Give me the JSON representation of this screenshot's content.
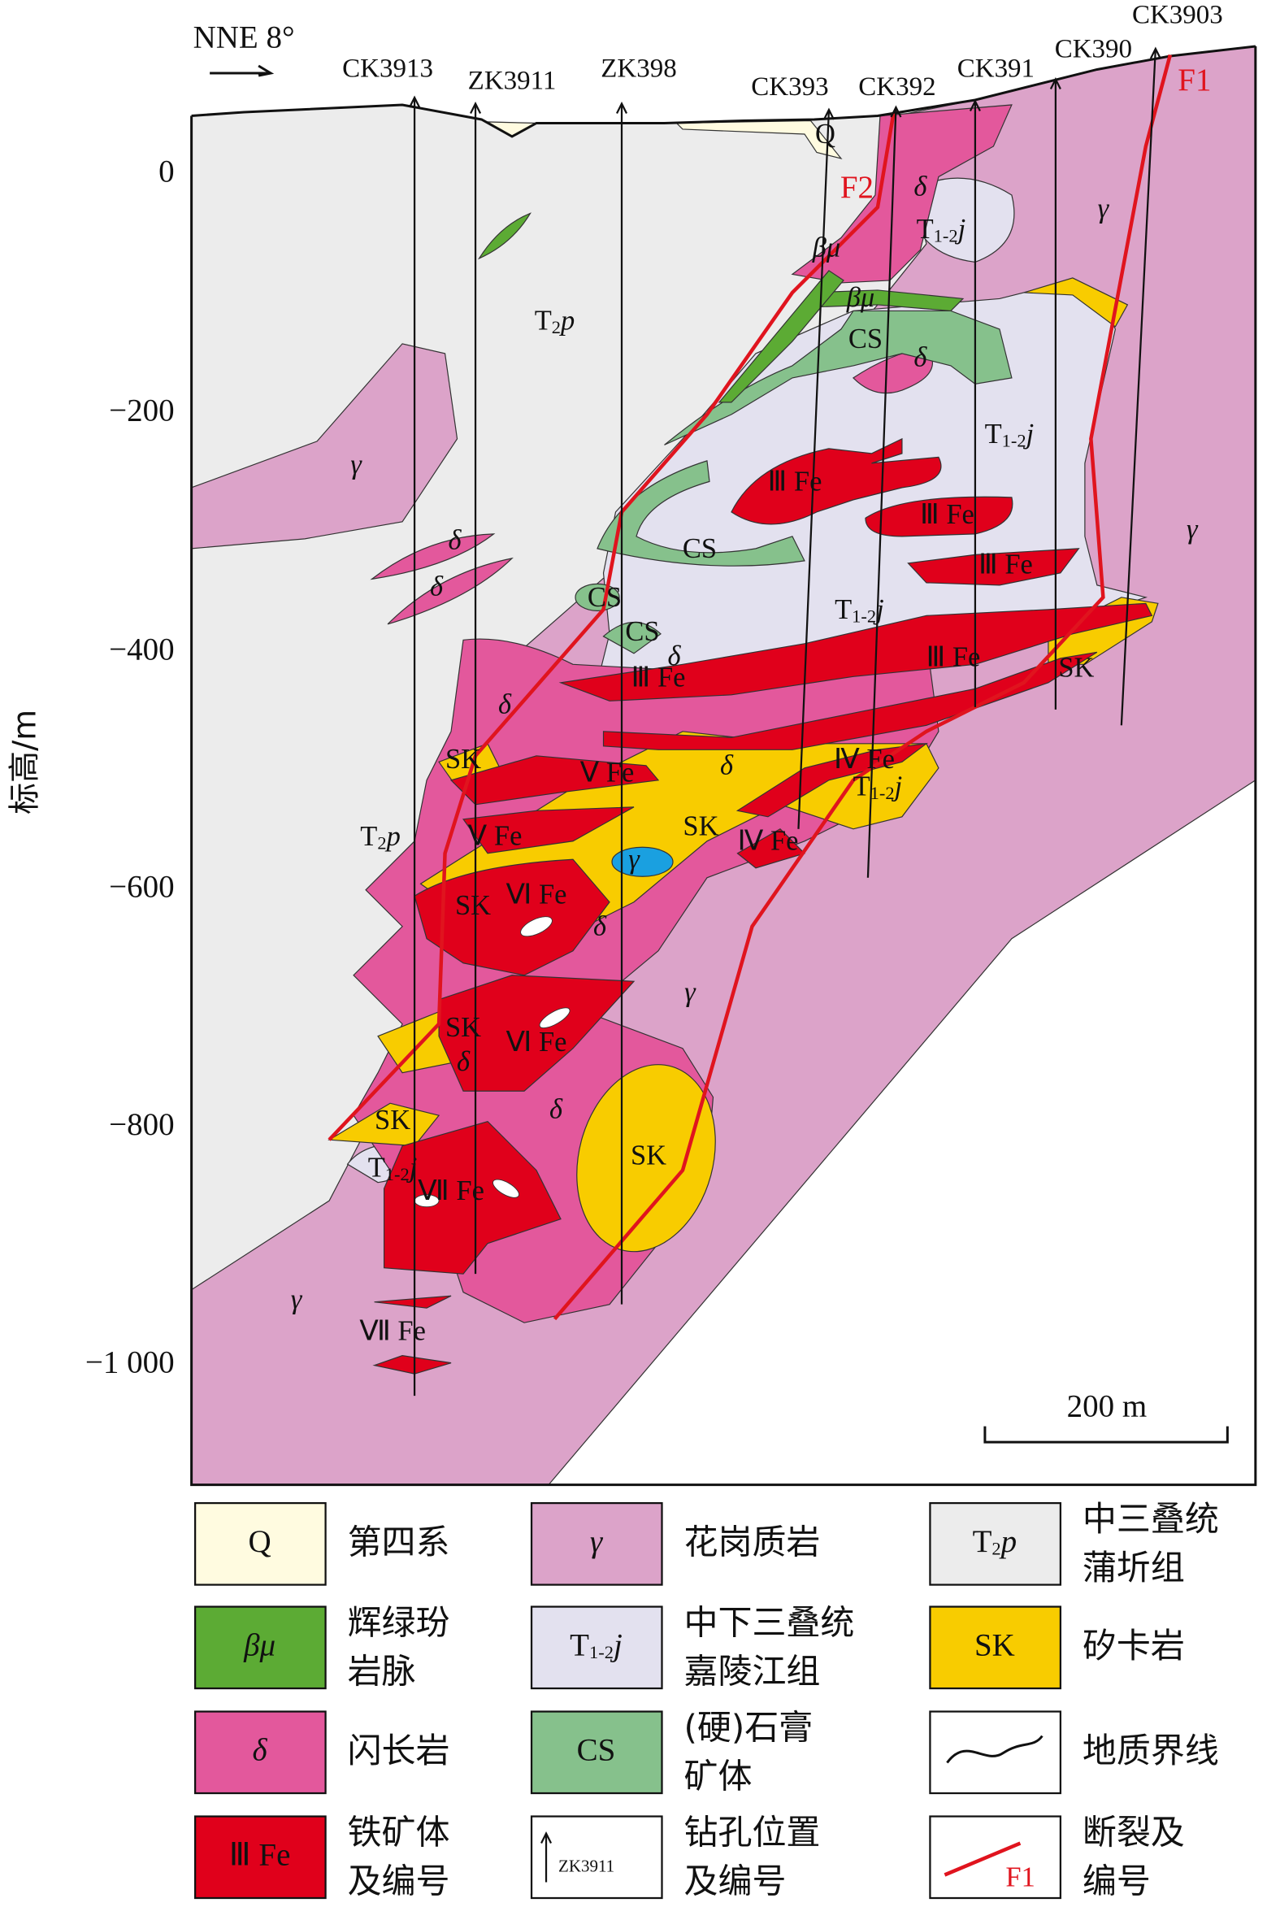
{
  "orientation": "NNE 8°",
  "drillholes": [
    "CK3913",
    "ZK3911",
    "ZK398",
    "CK393",
    "CK392",
    "CK391",
    "CK390",
    "CK3903"
  ],
  "section_labels": [
    "Q",
    "F1",
    "F2",
    "δ",
    "δ",
    "δ",
    "δ",
    "δ",
    "δ",
    "δ",
    "δ",
    "δ",
    "δ",
    "γ",
    "γ",
    "γ",
    "γ",
    "γ",
    "γ",
    "βμ",
    "βμ",
    "CS",
    "CS",
    "CS",
    "CS",
    "Ⅲ Fe",
    "Ⅲ Fe",
    "Ⅲ Fe",
    "Ⅲ Fe",
    "Ⅲ Fe",
    "Ⅳ Fe",
    "Ⅳ Fe",
    "Ⅴ Fe",
    "Ⅴ Fe",
    "Ⅵ Fe",
    "Ⅵ Fe",
    "Ⅶ Fe",
    "Ⅶ Fe",
    "SK",
    "SK",
    "SK",
    "SK",
    "SK",
    "SK",
    "SK"
  ],
  "strata_labels": [
    {
      "main": "T",
      "sub": "2",
      "tail": "p"
    },
    {
      "main": "T",
      "sub": "2",
      "tail": "p"
    },
    {
      "main": "T",
      "sub": "1-2",
      "tail": "j"
    },
    {
      "main": "T",
      "sub": "1-2",
      "tail": "j"
    },
    {
      "main": "T",
      "sub": "1-2",
      "tail": "j"
    },
    {
      "main": "T",
      "sub": "1-2",
      "tail": "j"
    },
    {
      "main": "T",
      "sub": "1-2",
      "tail": "j"
    }
  ],
  "axis": {
    "title": "标高/m",
    "ticks": [
      "0",
      "−200",
      "−400",
      "−600",
      "−800",
      "−1 000"
    ]
  },
  "scale_bar": "200 m",
  "legend": [
    {
      "symbol": "Q",
      "text": [
        "第四系"
      ]
    },
    {
      "symbol": "γ",
      "text": [
        "花岗质岩"
      ]
    },
    {
      "symbol": {
        "main": "T",
        "sub": "2",
        "tail": "p"
      },
      "text": [
        "中三叠统",
        "蒲圻组"
      ]
    },
    {
      "symbol": "βμ",
      "text": [
        "辉绿玢",
        "岩脉"
      ]
    },
    {
      "symbol": {
        "main": "T",
        "sub": "1-2",
        "tail": "j"
      },
      "text": [
        "中下三叠统",
        "嘉陵江组"
      ]
    },
    {
      "symbol": "SK",
      "text": [
        "矽卡岩"
      ]
    },
    {
      "symbol": "δ",
      "text": [
        "闪长岩"
      ]
    },
    {
      "symbol": "CS",
      "text": [
        "(硬)石膏",
        "矿体"
      ]
    },
    {
      "text": [
        "地质界线"
      ]
    },
    {
      "symbol": "Ⅲ Fe",
      "text": [
        "铁矿体",
        "及编号"
      ]
    },
    {
      "symbol": "ZK3911",
      "text": [
        "钻孔位置",
        "及编号"
      ]
    },
    {
      "symbol": "F1",
      "text": [
        "断裂及",
        "编号"
      ]
    }
  ]
}
